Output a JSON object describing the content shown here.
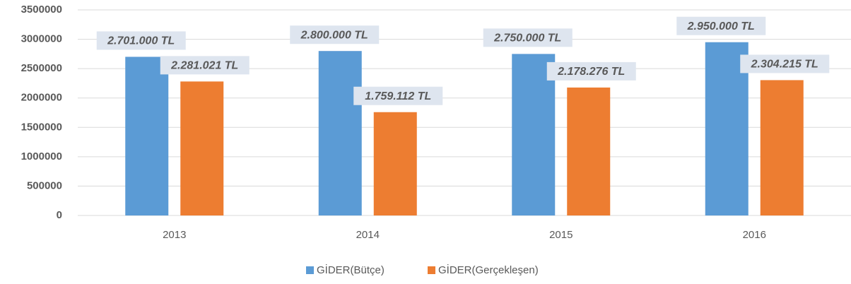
{
  "chart_data": {
    "type": "bar",
    "categories": [
      "2013",
      "2014",
      "2015",
      "2016"
    ],
    "series": [
      {
        "name": "GİDER(Bütçe)",
        "color": "#5b9bd5",
        "values": [
          2701000,
          2800000,
          2750000,
          2950000
        ],
        "value_labels": [
          "2.701.000 TL",
          "2.800.000 TL",
          "2.750.000 TL",
          "2.950.000 TL"
        ]
      },
      {
        "name": "GİDER(Gerçekleşen)",
        "color": "#ed7d31",
        "values": [
          2281021,
          1759112,
          2178276,
          2304215
        ],
        "value_labels": [
          "2.281.021 TL",
          "1.759.112 TL",
          "2.178.276 TL",
          "2.304.215 TL"
        ]
      }
    ],
    "ylim": [
      0,
      3500000
    ],
    "yticks": [
      0,
      500000,
      1000000,
      1500000,
      2000000,
      2500000,
      3000000,
      3500000
    ],
    "grid": true,
    "legend": "bottom"
  }
}
